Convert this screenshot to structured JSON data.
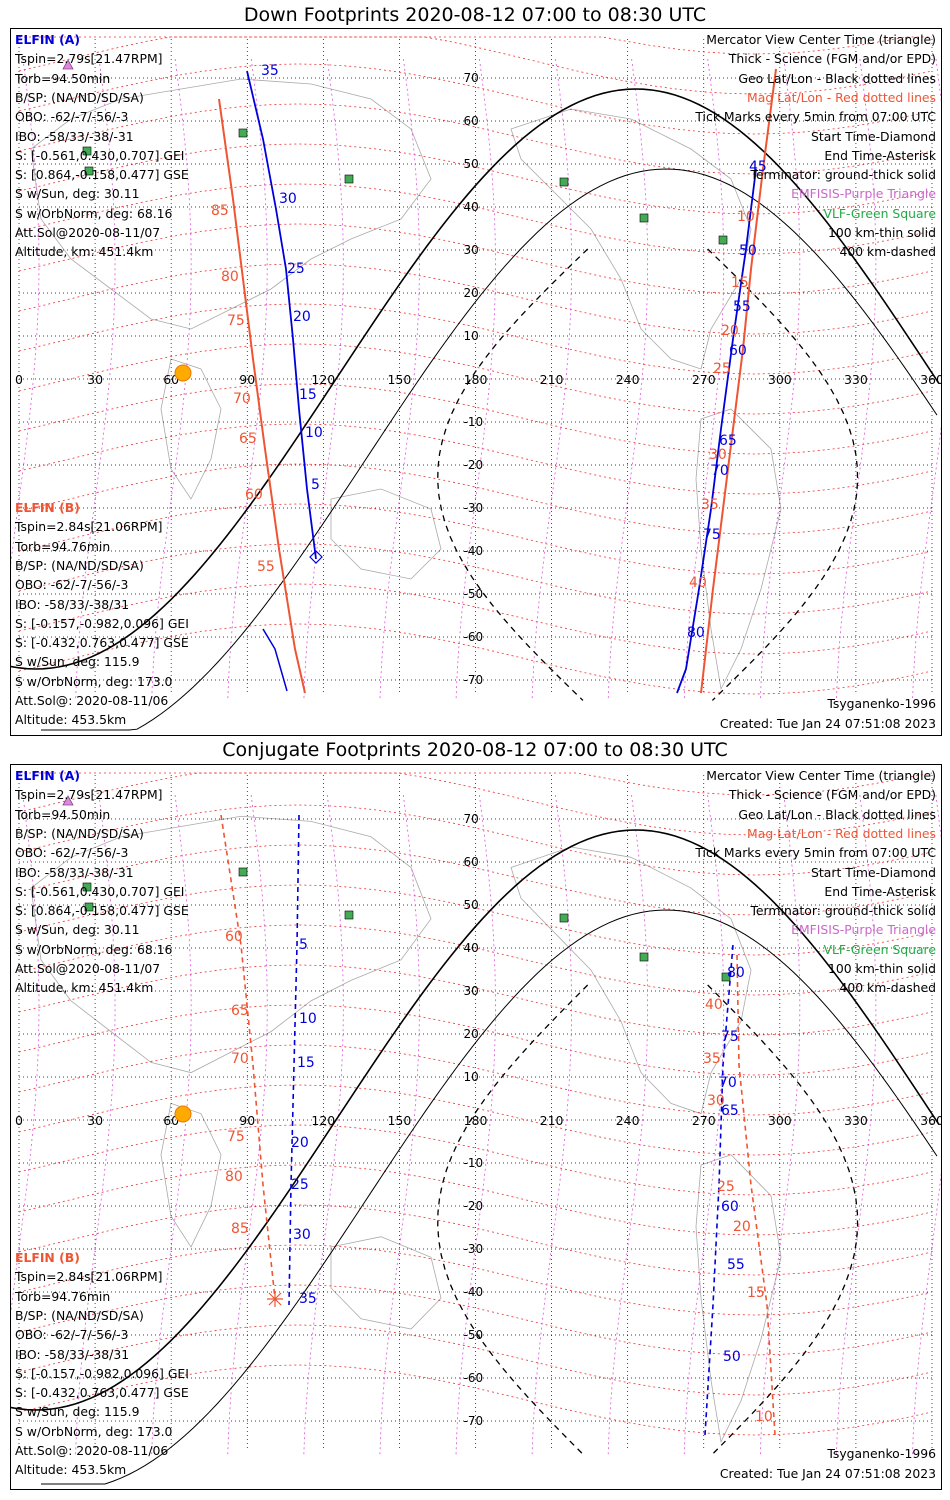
{
  "panels": [
    {
      "title": "Down Footprints 2020-08-12 07:00 to 08:30 UTC",
      "elfin_a": [
        "ELFIN (A)",
        "Tspin=2.79s[21.47RPM]",
        "Torb=94.50min",
        "B/SP: (NA/ND/SD/SA)",
        "OBO: -62/-7/-56/-3",
        "IBO: -58/33/-38/-31",
        "S: [-0.561,0.430,0.707] GEI",
        "S: [0.864,-0.158,0.477] GSE",
        "S w/Sun, deg: 30.11",
        "S w/OrbNorm, deg: 68.16",
        "Att.Sol@2020-08-11/07",
        "Altitude, km: 451.4km"
      ],
      "elfin_b": [
        "ELFIN (B)",
        "Tspin=2.84s[21.06RPM]",
        "Torb=94.76min",
        "B/SP: (NA/ND/SD/SA)",
        "OBO: -62/-7/-56/-3",
        "IBO: -58/33/-38/31",
        "S: [-0.157,-0.982,0.096] GEI",
        "S: [-0.432,0.763,0.477] GSE",
        "S w/Sun, deg: 115.9",
        "S w/OrbNorm, deg: 173.0",
        "Att.Sol@: 2020-08-11/06",
        "Altitude: 453.5km"
      ],
      "legend": [
        "Mercator View Center Time (triangle)",
        "Thick - Science (FGM and/or EPD)",
        "Geo Lat/Lon - Black dotted lines",
        "Mag Lat/Lon - Red dotted lines",
        "Tick Marks every 5min from 07:00 UTC",
        "Start Time-Diamond",
        "End Time-Asterisk",
        "Terminator: ground-thick solid",
        "EMFISIS-Purple Triangle",
        "VLF-Green Square",
        "100 km-thin solid",
        "400 km-dashed"
      ],
      "model": "Tsyganenko-1996",
      "created": "Created: Tue Jan 24 07:51:08 2023",
      "blue_ticks_a": [
        "35",
        "30",
        "25",
        "20",
        "15",
        "10",
        "5"
      ],
      "red_ticks_a": [
        "85",
        "80",
        "75",
        "70",
        "65",
        "60",
        "55"
      ],
      "blue_ticks_b": [
        "45",
        "50",
        "55",
        "60",
        "65",
        "70",
        "75",
        "80"
      ],
      "red_ticks_b": [
        "10",
        "15",
        "20",
        "25",
        "30",
        "35",
        "40"
      ]
    },
    {
      "title": "Conjugate Footprints 2020-08-12 07:00 to 08:30 UTC",
      "elfin_a": [
        "ELFIN (A)",
        "Tspin=2.79s[21.47RPM]",
        "Torb=94.50min",
        "B/SP: (NA/ND/SD/SA)",
        "OBO: -62/-7/-56/-3",
        "IBO: -58/33/-38/-31",
        "S: [-0.561,0.430,0.707] GEI",
        "S: [0.864,-0.158,0.477] GSE",
        "S w/Sun, deg: 30.11",
        "S w/OrbNorm, deg: 68.16",
        "Att.Sol@2020-08-11/07",
        "Altitude, km: 451.4km"
      ],
      "elfin_b": [
        "ELFIN (B)",
        "Tspin=2.84s[21.06RPM]",
        "Torb=94.76min",
        "B/SP: (NA/ND/SD/SA)",
        "OBO: -62/-7/-56/-3",
        "IBO: -58/33/-38/31",
        "S: [-0.157,-0.982,0.096] GEI",
        "S: [-0.432,0.763,0.477] GSE",
        "S w/Sun, deg: 115.9",
        "S w/OrbNorm, deg: 173.0",
        "Att.Sol@: 2020-08-11/06",
        "Altitude: 453.5km"
      ],
      "legend": [
        "Mercator View Center Time (triangle)",
        "Thick - Science (FGM and/or EPD)",
        "Geo Lat/Lon - Black dotted lines",
        "Mag Lat/Lon - Red dotted lines",
        "Tick Marks every 5min from 07:00 UTC",
        "Start Time-Diamond",
        "End Time-Asterisk",
        "Terminator: ground-thick solid",
        "EMFISIS-Purple Triangle",
        "VLF-Green Square",
        "100 km-thin solid",
        "400 km-dashed"
      ],
      "model": "Tsyganenko-1996",
      "created": "Created: Tue Jan 24 07:51:08 2023",
      "blue_ticks_a": [
        "5",
        "10",
        "15",
        "20",
        "25",
        "30",
        "35"
      ],
      "red_ticks_a": [
        "60",
        "65",
        "70",
        "75",
        "80",
        "85"
      ],
      "blue_ticks_b": [
        "80",
        "75",
        "70",
        "65",
        "60",
        "55",
        "50"
      ],
      "red_ticks_b": [
        "40",
        "35",
        "30",
        "25",
        "20",
        "15",
        "10"
      ]
    }
  ],
  "map": {
    "lon_labels": [
      "0",
      "30",
      "60",
      "90",
      "120",
      "150",
      "180",
      "210",
      "240",
      "270",
      "300",
      "330",
      "360"
    ],
    "lat_labels": [
      "70",
      "60",
      "50",
      "40",
      "30",
      "20",
      "10",
      "-10",
      "-20",
      "-30",
      "-40",
      "-50",
      "-60",
      "-70"
    ]
  },
  "colors": {
    "elfin_a": "#0000dd",
    "elfin_b": "#ee5533",
    "emfisis": "#cc66cc",
    "vlf": "#22aa44",
    "geo_grid": "#000000",
    "mag_grid": "#ee3333",
    "sun": "#ffaa00",
    "coast": "#aaaaaa"
  }
}
